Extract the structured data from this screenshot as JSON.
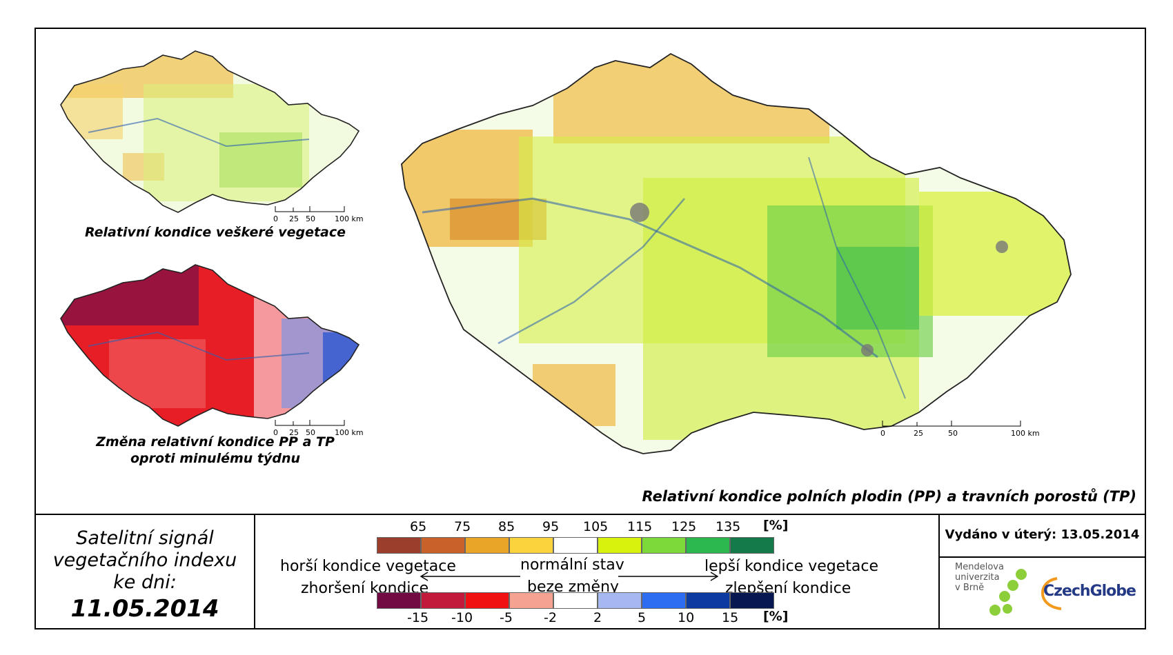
{
  "maps": {
    "small_top": {
      "caption": "Relativní kondice veškeré vegetace",
      "scale_labels": [
        "0",
        "25",
        "50",
        "100 km"
      ]
    },
    "small_bottom": {
      "caption_line1": "Změna relativní kondice PP a TP",
      "caption_line2": "oproti minulému týdnu",
      "scale_labels": [
        "0",
        "25",
        "50",
        "100 km"
      ]
    },
    "main": {
      "caption": "Relativní kondice polních plodin (PP) a travních porostů (TP)",
      "scale_labels": [
        "0",
        "25",
        "50",
        "100 km"
      ]
    }
  },
  "info": {
    "line1": "Satelitní signál",
    "line2": "vegetačního indexu",
    "line3": "ke dni:",
    "date": "11.05.2014"
  },
  "legend": {
    "top_ticks": [
      "65",
      "75",
      "85",
      "95",
      "105",
      "115",
      "125",
      "135",
      "[%]"
    ],
    "top_colors": [
      "#9b3e2c",
      "#c8612a",
      "#e9a528",
      "#fad43c",
      "#ffffff",
      "#d8f20d",
      "#7dd93a",
      "#2cb84f",
      "#147a4a"
    ],
    "left_top": "horší kondice vegetace",
    "left_bottom": "zhoršení kondice",
    "center_top": "normální stav",
    "center_bottom": "beze změny",
    "right_top": "lepší kondice vegetace",
    "right_bottom": "zlepšení kondice",
    "bottom_ticks": [
      "-15",
      "-10",
      "-5",
      "-2",
      "2",
      "5",
      "10",
      "15",
      "[%]"
    ],
    "bottom_colors": [
      "#720b43",
      "#c11a3a",
      "#f01212",
      "#f6a290",
      "#ffffff",
      "#a5b8f0",
      "#2d6df2",
      "#0b3aa0",
      "#07174f"
    ]
  },
  "issued": "Vydáno v úterý: 13.05.2014",
  "logos": {
    "mendel_line1": "Mendelova",
    "mendel_line2": "univerzita",
    "mendel_line3": "v Brně",
    "czechglobe": "CzechGlobe"
  }
}
